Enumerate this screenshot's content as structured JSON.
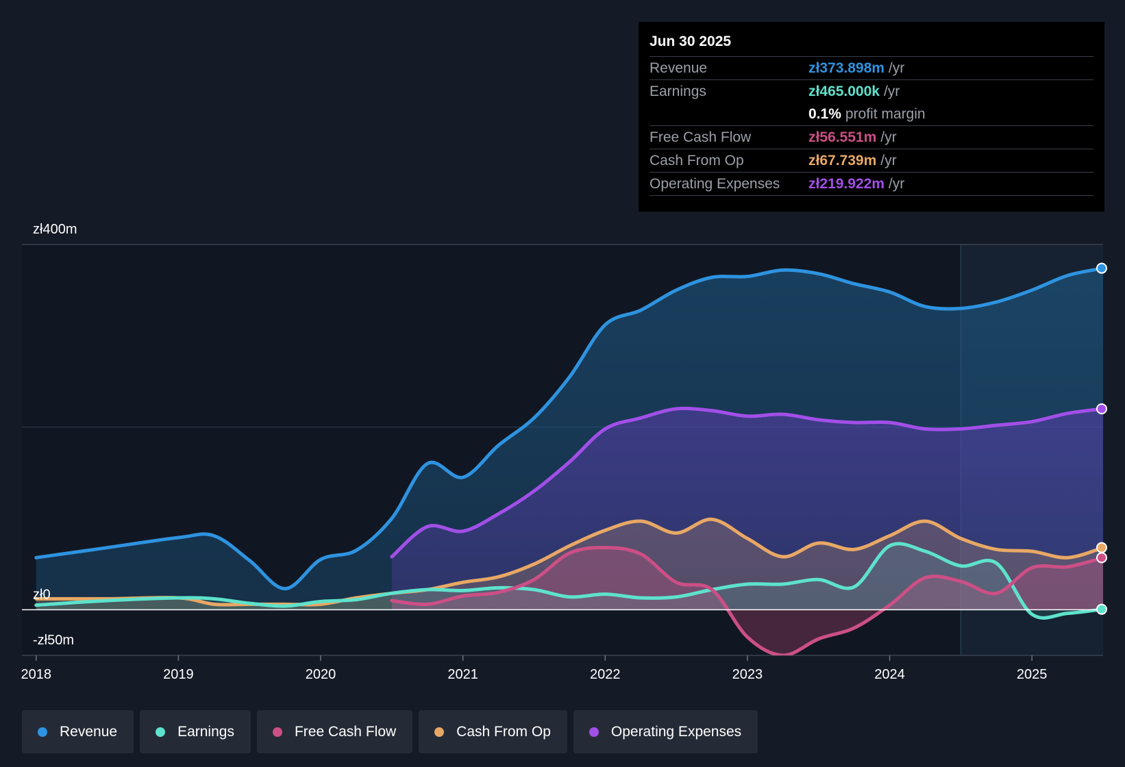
{
  "chart_data": {
    "type": "area",
    "currency_prefix": "zł",
    "y_axis": {
      "ylim": [
        -50,
        400
      ],
      "labels": [
        "zł400m",
        "zł0",
        "-zł50m"
      ],
      "label_values": [
        400,
        0,
        -50
      ]
    },
    "x_axis": {
      "xlim": [
        2017.9,
        2025.5
      ],
      "ticks": [
        "2018",
        "2019",
        "2020",
        "2021",
        "2022",
        "2023",
        "2024",
        "2025"
      ],
      "tick_values": [
        2018,
        2019,
        2020,
        2021,
        2022,
        2023,
        2024,
        2025
      ]
    },
    "forecast_start": 2024.5,
    "series": [
      {
        "name": "Revenue",
        "color": "#2e93e0",
        "points": [
          [
            2018.0,
            57
          ],
          [
            2018.5,
            68
          ],
          [
            2019.0,
            79
          ],
          [
            2019.25,
            81
          ],
          [
            2019.5,
            54
          ],
          [
            2019.75,
            23
          ],
          [
            2020.0,
            55
          ],
          [
            2020.25,
            65
          ],
          [
            2020.5,
            100
          ],
          [
            2020.75,
            160
          ],
          [
            2021.0,
            145
          ],
          [
            2021.25,
            180
          ],
          [
            2021.5,
            210
          ],
          [
            2021.75,
            255
          ],
          [
            2022.0,
            312
          ],
          [
            2022.25,
            328
          ],
          [
            2022.5,
            350
          ],
          [
            2022.75,
            364
          ],
          [
            2023.0,
            365
          ],
          [
            2023.25,
            372
          ],
          [
            2023.5,
            368
          ],
          [
            2023.75,
            357
          ],
          [
            2024.0,
            348
          ],
          [
            2024.25,
            332
          ],
          [
            2024.5,
            330
          ],
          [
            2024.75,
            337
          ],
          [
            2025.0,
            350
          ],
          [
            2025.25,
            366
          ],
          [
            2025.5,
            374
          ]
        ]
      },
      {
        "name": "Earnings",
        "color": "#5ee2cc",
        "points": [
          [
            2018.0,
            5
          ],
          [
            2018.5,
            10
          ],
          [
            2019.0,
            13
          ],
          [
            2019.25,
            12
          ],
          [
            2019.5,
            7
          ],
          [
            2019.75,
            4
          ],
          [
            2020.0,
            9
          ],
          [
            2020.25,
            11
          ],
          [
            2020.5,
            18
          ],
          [
            2020.75,
            22
          ],
          [
            2021.0,
            21
          ],
          [
            2021.25,
            24
          ],
          [
            2021.5,
            22
          ],
          [
            2021.75,
            14
          ],
          [
            2022.0,
            17
          ],
          [
            2022.25,
            13
          ],
          [
            2022.5,
            14
          ],
          [
            2022.75,
            22
          ],
          [
            2023.0,
            28
          ],
          [
            2023.25,
            28
          ],
          [
            2023.5,
            33
          ],
          [
            2023.75,
            25
          ],
          [
            2024.0,
            70
          ],
          [
            2024.25,
            64
          ],
          [
            2024.5,
            48
          ],
          [
            2024.75,
            51
          ],
          [
            2025.0,
            -5
          ],
          [
            2025.25,
            -4
          ],
          [
            2025.5,
            0.5
          ]
        ]
      },
      {
        "name": "Free Cash Flow",
        "color": "#cc4f86",
        "points": [
          [
            2020.5,
            10
          ],
          [
            2020.75,
            6
          ],
          [
            2021.0,
            15
          ],
          [
            2021.25,
            19
          ],
          [
            2021.5,
            33
          ],
          [
            2021.75,
            62
          ],
          [
            2022.0,
            68
          ],
          [
            2022.25,
            61
          ],
          [
            2022.5,
            30
          ],
          [
            2022.75,
            22
          ],
          [
            2023.0,
            -30
          ],
          [
            2023.25,
            -50
          ],
          [
            2023.5,
            -32
          ],
          [
            2023.75,
            -20
          ],
          [
            2024.0,
            5
          ],
          [
            2024.25,
            35
          ],
          [
            2024.5,
            31
          ],
          [
            2024.75,
            18
          ],
          [
            2025.0,
            46
          ],
          [
            2025.25,
            47
          ],
          [
            2025.5,
            57
          ]
        ]
      },
      {
        "name": "Cash From Op",
        "color": "#e8a865",
        "points": [
          [
            2018.0,
            12
          ],
          [
            2018.5,
            12
          ],
          [
            2019.0,
            13
          ],
          [
            2019.25,
            6
          ],
          [
            2019.5,
            6
          ],
          [
            2019.75,
            6
          ],
          [
            2020.0,
            6
          ],
          [
            2020.25,
            13
          ],
          [
            2020.5,
            18
          ],
          [
            2020.75,
            22
          ],
          [
            2021.0,
            30
          ],
          [
            2021.25,
            36
          ],
          [
            2021.5,
            50
          ],
          [
            2021.75,
            70
          ],
          [
            2022.0,
            87
          ],
          [
            2022.25,
            97
          ],
          [
            2022.5,
            84
          ],
          [
            2022.75,
            99
          ],
          [
            2023.0,
            78
          ],
          [
            2023.25,
            58
          ],
          [
            2023.5,
            73
          ],
          [
            2023.75,
            66
          ],
          [
            2024.0,
            81
          ],
          [
            2024.25,
            97
          ],
          [
            2024.5,
            78
          ],
          [
            2024.75,
            66
          ],
          [
            2025.0,
            64
          ],
          [
            2025.25,
            57
          ],
          [
            2025.5,
            68
          ]
        ]
      },
      {
        "name": "Operating Expenses",
        "color": "#a24fe8",
        "points": [
          [
            2020.5,
            58
          ],
          [
            2020.75,
            91
          ],
          [
            2021.0,
            86
          ],
          [
            2021.25,
            105
          ],
          [
            2021.5,
            130
          ],
          [
            2021.75,
            162
          ],
          [
            2022.0,
            198
          ],
          [
            2022.25,
            210
          ],
          [
            2022.5,
            220
          ],
          [
            2022.75,
            218
          ],
          [
            2023.0,
            212
          ],
          [
            2023.25,
            214
          ],
          [
            2023.5,
            208
          ],
          [
            2023.75,
            205
          ],
          [
            2024.0,
            205
          ],
          [
            2024.25,
            198
          ],
          [
            2024.5,
            198
          ],
          [
            2024.75,
            202
          ],
          [
            2025.0,
            206
          ],
          [
            2025.25,
            215
          ],
          [
            2025.5,
            220
          ]
        ]
      }
    ]
  },
  "tooltip": {
    "date": "Jun 30 2025",
    "rows": [
      {
        "name": "Revenue",
        "value": "zł373.898m",
        "unit": "/yr",
        "color": "#2e93e0"
      },
      {
        "name": "Earnings",
        "value": "zł465.000k",
        "unit": "/yr",
        "color": "#5ee2cc"
      },
      {
        "name": "",
        "value": "0.1%",
        "unit": "profit margin",
        "color": "#ffffff"
      },
      {
        "name": "Free Cash Flow",
        "value": "zł56.551m",
        "unit": "/yr",
        "color": "#cc4f86"
      },
      {
        "name": "Cash From Op",
        "value": "zł67.739m",
        "unit": "/yr",
        "color": "#e8a865"
      },
      {
        "name": "Operating Expenses",
        "value": "zł219.922m",
        "unit": "/yr",
        "color": "#a24fe8"
      }
    ]
  },
  "legend": [
    {
      "label": "Revenue",
      "color": "#2e93e0"
    },
    {
      "label": "Earnings",
      "color": "#5ee2cc"
    },
    {
      "label": "Free Cash Flow",
      "color": "#cc4f86"
    },
    {
      "label": "Cash From Op",
      "color": "#e8a865"
    },
    {
      "label": "Operating Expenses",
      "color": "#a24fe8"
    }
  ]
}
